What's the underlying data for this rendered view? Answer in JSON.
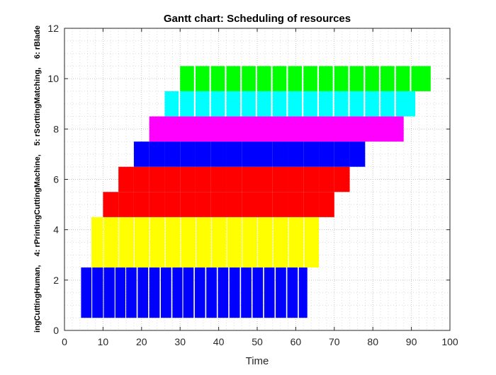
{
  "chart_data": {
    "type": "bar",
    "title": "Gantt chart: Scheduling of resources",
    "xlabel": "Time",
    "ylabel": "ingCuttingHuman,    4: rPrintingCuttingMachine,    5: rSorttingMatching,    6: rBlade",
    "xlim": [
      0,
      100
    ],
    "ylim": [
      0,
      12
    ],
    "xticks": [
      "0",
      "10",
      "20",
      "30",
      "40",
      "50",
      "60",
      "70",
      "80",
      "90",
      "100"
    ],
    "yticks": [
      "0",
      "2",
      "4",
      "6",
      "8",
      "10",
      "12"
    ],
    "grid": "major and minor dotted",
    "series": [
      {
        "color": "#0000ff",
        "y_range": [
          0.5,
          2.5
        ],
        "tasks": [
          [
            4.3,
            7.0
          ],
          [
            7.2,
            10.0
          ],
          [
            10.2,
            13.0
          ],
          [
            13.2,
            15.8
          ],
          [
            16.0,
            18.7
          ],
          [
            19.0,
            21.7
          ],
          [
            22.0,
            24.7
          ],
          [
            25.0,
            27.7
          ],
          [
            28.0,
            30.6
          ],
          [
            30.8,
            33.5
          ],
          [
            33.8,
            36.5
          ],
          [
            36.8,
            39.5
          ],
          [
            39.8,
            42.5
          ],
          [
            42.8,
            45.5
          ],
          [
            45.8,
            48.5
          ],
          [
            48.8,
            51.5
          ],
          [
            51.8,
            54.5
          ],
          [
            54.8,
            57.5
          ],
          [
            57.8,
            60.5
          ],
          [
            60.8,
            63.0
          ]
        ]
      },
      {
        "color": "#ffff00",
        "y_range": [
          2.5,
          4.5
        ],
        "tasks": [
          [
            7.0,
            10.0
          ],
          [
            10.2,
            14.0
          ],
          [
            14.2,
            18.0
          ],
          [
            18.2,
            22.0
          ],
          [
            22.2,
            26.0
          ],
          [
            26.2,
            30.0
          ],
          [
            30.2,
            34.0
          ],
          [
            34.2,
            38.0
          ],
          [
            38.2,
            42.0
          ],
          [
            42.2,
            46.0
          ],
          [
            46.2,
            50.0
          ],
          [
            50.2,
            54.0
          ],
          [
            54.2,
            58.0
          ],
          [
            58.2,
            62.0
          ],
          [
            62.2,
            66.0
          ]
        ]
      },
      {
        "color": "#ff0000",
        "y_range": [
          4.5,
          5.5
        ],
        "tasks": [
          [
            10.0,
            14.0
          ],
          [
            14.0,
            18.0
          ],
          [
            18.0,
            22.0
          ],
          [
            22.0,
            26.0
          ],
          [
            26.0,
            30.0
          ],
          [
            30.0,
            34.0
          ],
          [
            34.0,
            38.0
          ],
          [
            38.0,
            42.0
          ],
          [
            42.0,
            46.0
          ],
          [
            46.0,
            50.0
          ],
          [
            50.0,
            54.0
          ],
          [
            54.0,
            58.0
          ],
          [
            58.0,
            62.0
          ],
          [
            62.0,
            66.0
          ],
          [
            66.0,
            70.0
          ]
        ]
      },
      {
        "color": "#ff0000",
        "y_range": [
          5.5,
          6.5
        ],
        "tasks": [
          [
            14.0,
            18.0
          ],
          [
            18.0,
            22.0
          ],
          [
            22.0,
            26.0
          ],
          [
            26.0,
            30.0
          ],
          [
            30.0,
            34.0
          ],
          [
            34.0,
            38.0
          ],
          [
            38.0,
            42.0
          ],
          [
            42.0,
            46.0
          ],
          [
            46.0,
            50.0
          ],
          [
            50.0,
            54.0
          ],
          [
            54.0,
            58.0
          ],
          [
            58.0,
            62.0
          ],
          [
            62.0,
            66.0
          ],
          [
            66.0,
            70.0
          ],
          [
            70.0,
            74.0
          ]
        ]
      },
      {
        "color": "#0000ff",
        "y_range": [
          6.5,
          7.5
        ],
        "tasks": [
          [
            18.0,
            22.0
          ],
          [
            22.0,
            26.0
          ],
          [
            26.0,
            30.0
          ],
          [
            30.0,
            34.0
          ],
          [
            34.0,
            38.0
          ],
          [
            38.0,
            42.0
          ],
          [
            42.0,
            46.0
          ],
          [
            46.0,
            50.0
          ],
          [
            50.0,
            54.0
          ],
          [
            54.0,
            58.0
          ],
          [
            58.0,
            62.0
          ],
          [
            62.0,
            66.0
          ],
          [
            66.0,
            70.0
          ],
          [
            70.0,
            74.0
          ],
          [
            74.0,
            78.0
          ]
        ]
      },
      {
        "color": "#ff00ff",
        "y_range": [
          7.5,
          8.5
        ],
        "tasks": [
          [
            22.0,
            88.0
          ]
        ]
      },
      {
        "color": "#00ffff",
        "y_range": [
          8.5,
          9.5
        ],
        "tasks": [
          [
            26.0,
            29.6
          ],
          [
            30.0,
            33.6
          ],
          [
            34.0,
            37.6
          ],
          [
            38.0,
            41.6
          ],
          [
            42.0,
            45.6
          ],
          [
            46.0,
            49.6
          ],
          [
            50.0,
            53.6
          ],
          [
            54.0,
            57.6
          ],
          [
            58.0,
            61.6
          ],
          [
            62.0,
            65.6
          ],
          [
            66.0,
            69.6
          ],
          [
            70.0,
            73.6
          ],
          [
            74.0,
            77.6
          ],
          [
            78.0,
            81.6
          ],
          [
            82.0,
            85.6
          ],
          [
            86.0,
            91.0
          ]
        ]
      },
      {
        "color": "#00ff00",
        "y_range": [
          9.5,
          10.5
        ],
        "tasks": [
          [
            30.0,
            33.6
          ],
          [
            34.0,
            37.6
          ],
          [
            38.0,
            41.6
          ],
          [
            42.0,
            45.6
          ],
          [
            46.0,
            49.6
          ],
          [
            50.0,
            53.6
          ],
          [
            54.0,
            57.6
          ],
          [
            58.0,
            61.6
          ],
          [
            62.0,
            65.6
          ],
          [
            66.0,
            69.6
          ],
          [
            70.0,
            73.6
          ],
          [
            74.0,
            77.6
          ],
          [
            78.0,
            81.6
          ],
          [
            82.0,
            85.6
          ],
          [
            86.0,
            89.6
          ],
          [
            90.0,
            95.0
          ]
        ]
      }
    ]
  }
}
